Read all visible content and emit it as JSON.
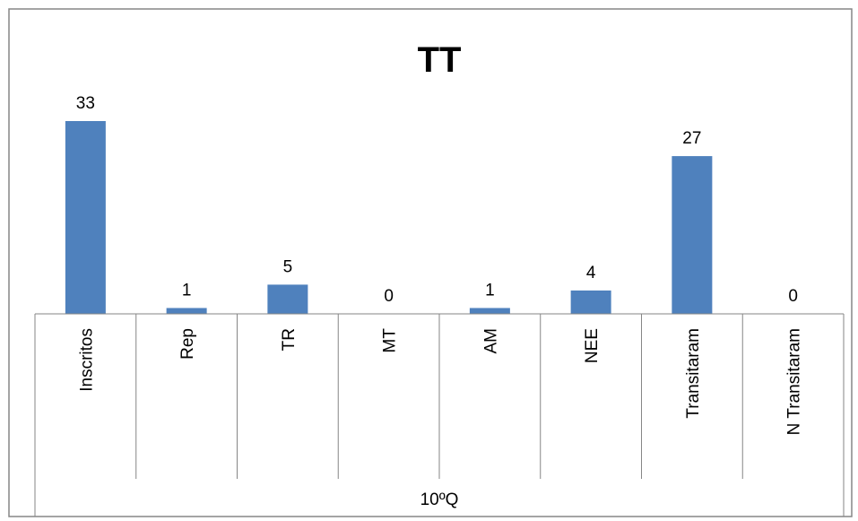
{
  "chart_data": {
    "type": "bar",
    "title": "TT",
    "group_label": "10ºQ",
    "categories": [
      "Inscritos",
      "Rep",
      "TR",
      "MT",
      "AM",
      "NEE",
      "Transitaram",
      "N Transitaram"
    ],
    "values": [
      33,
      1,
      5,
      0,
      1,
      4,
      27,
      0
    ],
    "ylim": [
      0,
      33
    ],
    "grid": false,
    "legend": "none",
    "bar_color": "#4f81bd"
  }
}
